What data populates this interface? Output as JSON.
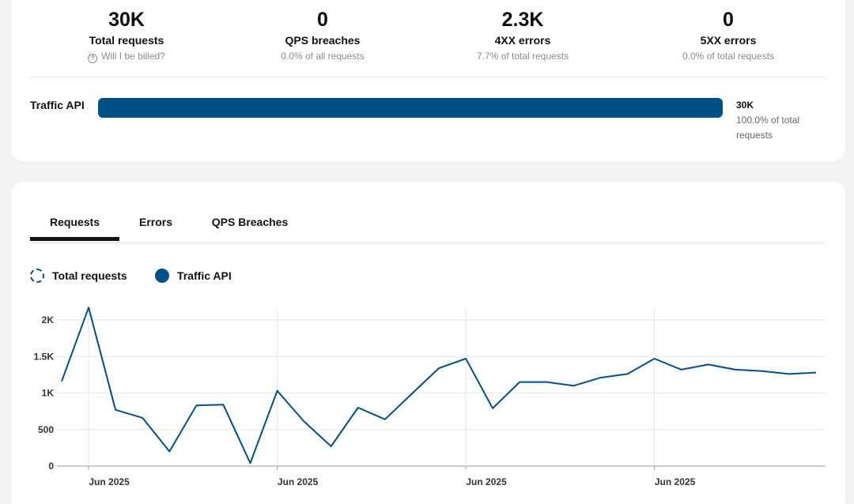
{
  "summary": {
    "stats": [
      {
        "value": "30K",
        "label": "Total requests",
        "sub": "Will I be billed?",
        "has_help_icon": true
      },
      {
        "value": "0",
        "label": "QPS breaches",
        "sub": "0.0% of all requests"
      },
      {
        "value": "2.3K",
        "label": "4XX errors",
        "sub": "7.7% of total requests"
      },
      {
        "value": "0",
        "label": "5XX errors",
        "sub": "0.0% of total requests"
      }
    ],
    "breakdown": {
      "name": "Traffic API",
      "value": "30K",
      "percent_text": "100.0% of total requests",
      "share": 1.0
    }
  },
  "tabs": [
    {
      "label": "Requests",
      "active": true
    },
    {
      "label": "Errors",
      "active": false
    },
    {
      "label": "QPS Breaches",
      "active": false
    }
  ],
  "legend": [
    {
      "label": "Total requests",
      "style": "dashed"
    },
    {
      "label": "Traffic API",
      "style": "solid"
    }
  ],
  "colors": {
    "accent": "#004f86"
  },
  "chart_data": {
    "type": "line",
    "ylim": [
      0,
      2000
    ],
    "y_ticks": [
      0,
      500,
      1000,
      1500,
      2000
    ],
    "y_tick_labels": [
      "0",
      "500",
      "1K",
      "1.5K",
      "2K"
    ],
    "x_tick_labels": [
      "Jun 2025",
      "Jun 2025",
      "Jun 2025",
      "Jun 2025"
    ],
    "grid": true,
    "series": [
      {
        "name": "Traffic API",
        "color": "#004f86",
        "values": [
          1160,
          2170,
          770,
          660,
          200,
          830,
          840,
          40,
          1030,
          610,
          270,
          800,
          640,
          990,
          1340,
          1470,
          790,
          1150,
          1150,
          1100,
          1210,
          1260,
          1470,
          1320,
          1390,
          1320,
          1300,
          1260,
          1280
        ]
      }
    ]
  }
}
